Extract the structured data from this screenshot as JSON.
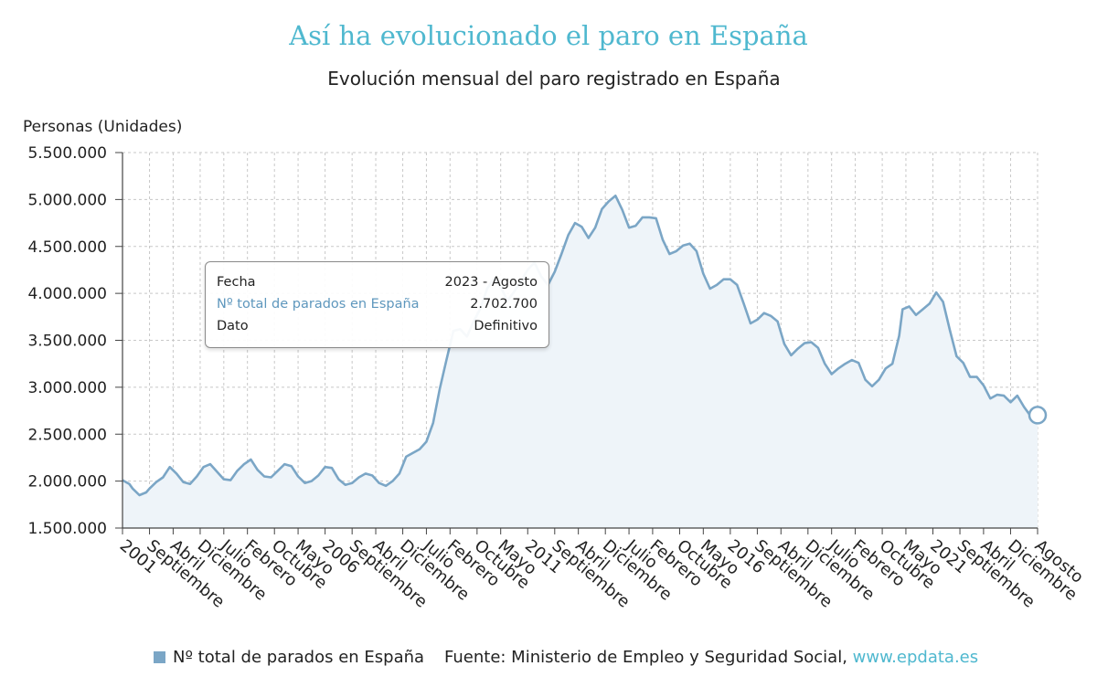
{
  "title": "Así ha evolucionado el paro en España",
  "subtitle": "Evolución mensual del paro registrado en España",
  "tooltip": {
    "rows": [
      {
        "label": "Fecha",
        "value": "2023 - Agosto"
      },
      {
        "label": "Nº total de parados en España",
        "value": "2.702.700"
      },
      {
        "label": "Dato",
        "value": "Definitivo"
      }
    ]
  },
  "legend": {
    "label": "Nº total de parados en España"
  },
  "source": {
    "text": "Fuente: Ministerio de Empleo y Seguridad Social,",
    "link": "www.epdata.es"
  },
  "colors": {
    "line": "#7ba6c6",
    "area": "#eef4f9",
    "title": "#4fb8cf",
    "grid": "#c8c8c8"
  },
  "chart_data": {
    "type": "area",
    "ylabel": "Personas (Unidades)",
    "ylim": [
      1500000,
      5500000
    ],
    "yticks": [
      1500000,
      2000000,
      2500000,
      3000000,
      3500000,
      4000000,
      4500000,
      5000000,
      5500000
    ],
    "ytick_labels": [
      "1.500.000",
      "2.000.000",
      "2.500.000",
      "3.000.000",
      "3.500.000",
      "4.000.000",
      "4.500.000",
      "5.000.000",
      "5.500.000"
    ],
    "xlim": [
      "2001-01",
      "2023-08"
    ],
    "xticks": [
      {
        "date": "2001-01",
        "label": "2001"
      },
      {
        "date": "2001-09",
        "label": "Septiembre"
      },
      {
        "date": "2002-04",
        "label": "Abril"
      },
      {
        "date": "2002-12",
        "label": "Diciembre"
      },
      {
        "date": "2003-07",
        "label": "Julio"
      },
      {
        "date": "2004-02",
        "label": "Febrero"
      },
      {
        "date": "2004-10",
        "label": "Octubre"
      },
      {
        "date": "2005-05",
        "label": "Mayo"
      },
      {
        "date": "2006-01",
        "label": "2006"
      },
      {
        "date": "2006-09",
        "label": "Septiembre"
      },
      {
        "date": "2007-04",
        "label": "Abril"
      },
      {
        "date": "2007-12",
        "label": "Diciembre"
      },
      {
        "date": "2008-07",
        "label": "Julio"
      },
      {
        "date": "2009-02",
        "label": "Febrero"
      },
      {
        "date": "2009-10",
        "label": "Octubre"
      },
      {
        "date": "2010-05",
        "label": "Mayo"
      },
      {
        "date": "2011-01",
        "label": "2011"
      },
      {
        "date": "2011-09",
        "label": "Septiembre"
      },
      {
        "date": "2012-04",
        "label": "Abril"
      },
      {
        "date": "2012-12",
        "label": "Diciembre"
      },
      {
        "date": "2013-07",
        "label": "Julio"
      },
      {
        "date": "2014-02",
        "label": "Febrero"
      },
      {
        "date": "2014-10",
        "label": "Octubre"
      },
      {
        "date": "2015-05",
        "label": "Mayo"
      },
      {
        "date": "2016-01",
        "label": "2016"
      },
      {
        "date": "2016-09",
        "label": "Septiembre"
      },
      {
        "date": "2017-04",
        "label": "Abril"
      },
      {
        "date": "2017-12",
        "label": "Diciembre"
      },
      {
        "date": "2018-07",
        "label": "Julio"
      },
      {
        "date": "2019-02",
        "label": "Febrero"
      },
      {
        "date": "2019-10",
        "label": "Octubre"
      },
      {
        "date": "2020-05",
        "label": "Mayo"
      },
      {
        "date": "2021-01",
        "label": "2021"
      },
      {
        "date": "2021-09",
        "label": "Septiembre"
      },
      {
        "date": "2022-04",
        "label": "Abril"
      },
      {
        "date": "2022-12",
        "label": "Diciembre"
      },
      {
        "date": "2023-08",
        "label": "Agosto"
      }
    ],
    "grid": true,
    "legend_position": "bottom-left",
    "series": [
      {
        "name": "Nº total de parados en España",
        "points": [
          [
            "2001-01",
            2010000
          ],
          [
            "2001-03",
            1970000
          ],
          [
            "2001-04",
            1920000
          ],
          [
            "2001-06",
            1850000
          ],
          [
            "2001-08",
            1880000
          ],
          [
            "2001-09",
            1920000
          ],
          [
            "2001-11",
            1990000
          ],
          [
            "2002-01",
            2040000
          ],
          [
            "2002-03",
            2150000
          ],
          [
            "2002-05",
            2080000
          ],
          [
            "2002-07",
            1990000
          ],
          [
            "2002-09",
            1970000
          ],
          [
            "2002-11",
            2050000
          ],
          [
            "2003-01",
            2150000
          ],
          [
            "2003-03",
            2180000
          ],
          [
            "2003-05",
            2100000
          ],
          [
            "2003-07",
            2020000
          ],
          [
            "2003-09",
            2010000
          ],
          [
            "2003-11",
            2110000
          ],
          [
            "2004-01",
            2180000
          ],
          [
            "2004-03",
            2230000
          ],
          [
            "2004-05",
            2120000
          ],
          [
            "2004-07",
            2050000
          ],
          [
            "2004-09",
            2040000
          ],
          [
            "2004-11",
            2110000
          ],
          [
            "2005-01",
            2180000
          ],
          [
            "2005-03",
            2160000
          ],
          [
            "2005-05",
            2050000
          ],
          [
            "2005-07",
            1980000
          ],
          [
            "2005-09",
            2000000
          ],
          [
            "2005-11",
            2060000
          ],
          [
            "2006-01",
            2150000
          ],
          [
            "2006-03",
            2140000
          ],
          [
            "2006-05",
            2020000
          ],
          [
            "2006-07",
            1960000
          ],
          [
            "2006-09",
            1980000
          ],
          [
            "2006-11",
            2040000
          ],
          [
            "2007-01",
            2080000
          ],
          [
            "2007-03",
            2060000
          ],
          [
            "2007-05",
            1980000
          ],
          [
            "2007-07",
            1950000
          ],
          [
            "2007-09",
            2000000
          ],
          [
            "2007-11",
            2080000
          ],
          [
            "2008-01",
            2260000
          ],
          [
            "2008-03",
            2300000
          ],
          [
            "2008-05",
            2340000
          ],
          [
            "2008-07",
            2420000
          ],
          [
            "2008-09",
            2620000
          ],
          [
            "2008-11",
            2990000
          ],
          [
            "2009-01",
            3300000
          ],
          [
            "2009-03",
            3600000
          ],
          [
            "2009-05",
            3620000
          ],
          [
            "2009-07",
            3540000
          ],
          [
            "2009-09",
            3700000
          ],
          [
            "2009-11",
            3840000
          ],
          [
            "2010-01",
            4050000
          ],
          [
            "2010-03",
            4160000
          ],
          [
            "2010-05",
            4070000
          ],
          [
            "2010-07",
            3920000
          ],
          [
            "2010-09",
            4020000
          ],
          [
            "2010-11",
            4130000
          ],
          [
            "2011-01",
            4250000
          ],
          [
            "2011-03",
            4330000
          ],
          [
            "2011-05",
            4180000
          ],
          [
            "2011-07",
            4090000
          ],
          [
            "2011-09",
            4230000
          ],
          [
            "2011-11",
            4420000
          ],
          [
            "2012-01",
            4620000
          ],
          [
            "2012-03",
            4750000
          ],
          [
            "2012-05",
            4710000
          ],
          [
            "2012-07",
            4590000
          ],
          [
            "2012-09",
            4700000
          ],
          [
            "2012-11",
            4900000
          ],
          [
            "2013-01",
            4980000
          ],
          [
            "2013-03",
            5040000
          ],
          [
            "2013-05",
            4890000
          ],
          [
            "2013-07",
            4700000
          ],
          [
            "2013-09",
            4720000
          ],
          [
            "2013-11",
            4810000
          ],
          [
            "2014-01",
            4810000
          ],
          [
            "2014-03",
            4800000
          ],
          [
            "2014-05",
            4570000
          ],
          [
            "2014-07",
            4420000
          ],
          [
            "2014-09",
            4450000
          ],
          [
            "2014-11",
            4510000
          ],
          [
            "2015-01",
            4530000
          ],
          [
            "2015-03",
            4450000
          ],
          [
            "2015-05",
            4210000
          ],
          [
            "2015-07",
            4050000
          ],
          [
            "2015-09",
            4090000
          ],
          [
            "2015-11",
            4150000
          ],
          [
            "2016-01",
            4150000
          ],
          [
            "2016-03",
            4090000
          ],
          [
            "2016-05",
            3890000
          ],
          [
            "2016-07",
            3680000
          ],
          [
            "2016-09",
            3720000
          ],
          [
            "2016-11",
            3790000
          ],
          [
            "2017-01",
            3760000
          ],
          [
            "2017-03",
            3700000
          ],
          [
            "2017-05",
            3460000
          ],
          [
            "2017-07",
            3340000
          ],
          [
            "2017-09",
            3410000
          ],
          [
            "2017-11",
            3470000
          ],
          [
            "2018-01",
            3480000
          ],
          [
            "2018-03",
            3420000
          ],
          [
            "2018-05",
            3250000
          ],
          [
            "2018-07",
            3140000
          ],
          [
            "2018-09",
            3200000
          ],
          [
            "2018-11",
            3250000
          ],
          [
            "2019-01",
            3290000
          ],
          [
            "2019-03",
            3260000
          ],
          [
            "2019-05",
            3080000
          ],
          [
            "2019-07",
            3010000
          ],
          [
            "2019-09",
            3080000
          ],
          [
            "2019-11",
            3200000
          ],
          [
            "2020-01",
            3250000
          ],
          [
            "2020-03",
            3550000
          ],
          [
            "2020-04",
            3830000
          ],
          [
            "2020-06",
            3860000
          ],
          [
            "2020-08",
            3770000
          ],
          [
            "2020-10",
            3830000
          ],
          [
            "2020-12",
            3890000
          ],
          [
            "2021-02",
            4010000
          ],
          [
            "2021-04",
            3910000
          ],
          [
            "2021-06",
            3610000
          ],
          [
            "2021-08",
            3330000
          ],
          [
            "2021-10",
            3260000
          ],
          [
            "2021-12",
            3110000
          ],
          [
            "2022-02",
            3110000
          ],
          [
            "2022-04",
            3020000
          ],
          [
            "2022-06",
            2880000
          ],
          [
            "2022-08",
            2920000
          ],
          [
            "2022-10",
            2910000
          ],
          [
            "2022-12",
            2840000
          ],
          [
            "2023-02",
            2910000
          ],
          [
            "2023-04",
            2790000
          ],
          [
            "2023-06",
            2690000
          ],
          [
            "2023-08",
            2702700
          ]
        ]
      }
    ]
  }
}
